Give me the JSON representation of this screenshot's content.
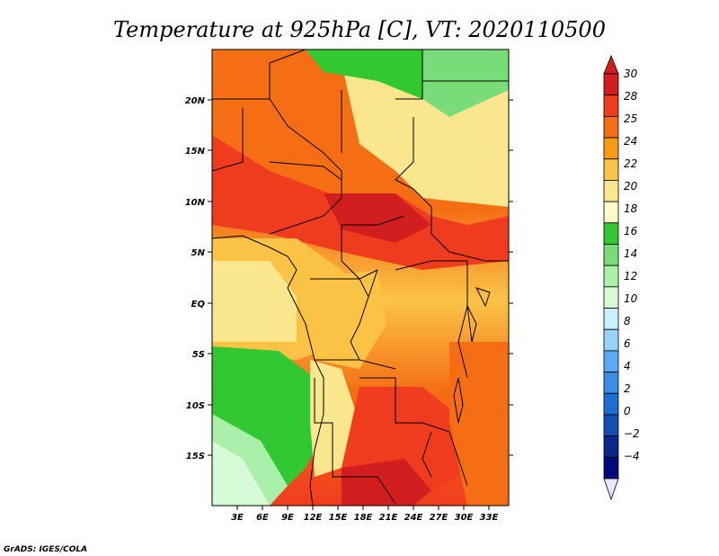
{
  "title": "Temperature at 925hPa [C], VT: 2020110500",
  "credit": "GrADS: IGES/COLA",
  "map": {
    "lat_labels": [
      "20N",
      "15N",
      "10N",
      "5N",
      "EQ",
      "5S",
      "10S",
      "15S"
    ],
    "lon_labels": [
      "3E",
      "6E",
      "9E",
      "12E",
      "15E",
      "18E",
      "21E",
      "24E",
      "27E",
      "30E",
      "33E"
    ]
  },
  "colorbar": {
    "labels": [
      "30",
      "28",
      "25",
      "24",
      "22",
      "20",
      "18",
      "16",
      "14",
      "12",
      "10",
      "8",
      "6",
      "4",
      "2",
      "0",
      "−2",
      "−4"
    ],
    "colors": [
      "#d21e1e",
      "#f03c1e",
      "#f56e14",
      "#fa9b14",
      "#fac346",
      "#fae68c",
      "#fffac8",
      "#32c832",
      "#78dc78",
      "#aaf0aa",
      "#d7fad7",
      "#c8f0ff",
      "#96d2fa",
      "#5aaaf5",
      "#3c8ce6",
      "#1e6ed2",
      "#1450b4",
      "#0a288c",
      "#000a78"
    ],
    "top_cap_color": "#d21e1e",
    "bottom_cap_color": "#e6e6fa"
  }
}
